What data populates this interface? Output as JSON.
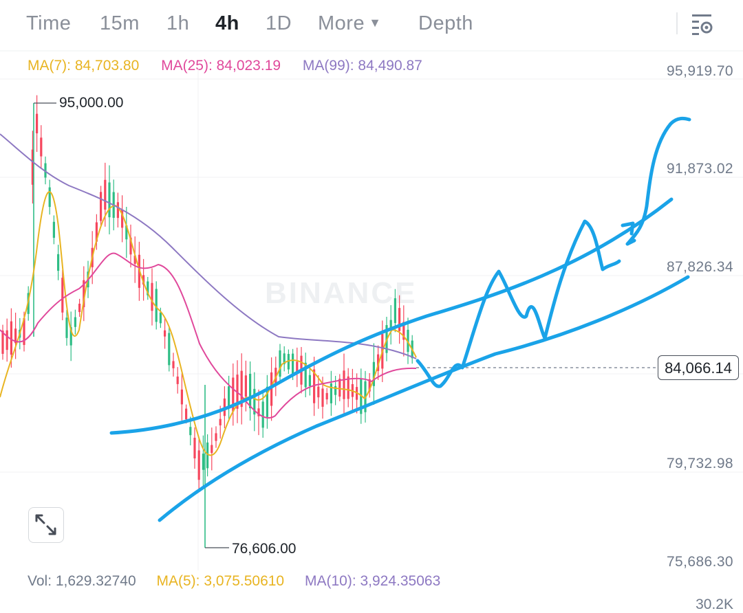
{
  "tabs": {
    "time": "Time",
    "m15": "15m",
    "h1": "1h",
    "h4": "4h",
    "d1": "1D",
    "more": "More",
    "depth": "Depth",
    "active": "4h"
  },
  "ma_legend": {
    "ma7": "MA(7): 84,703.80",
    "ma25": "MA(25): 84,023.19",
    "ma99": "MA(99): 84,490.87"
  },
  "price_axis": {
    "labels": [
      "95,919.70",
      "91,873.02",
      "87,826.34",
      "79,732.98",
      "75,686.30"
    ],
    "current_price": "84,066.14",
    "bottom_partial": "30.2K"
  },
  "extremes": {
    "high": "95,000.00",
    "low": "76,606.00"
  },
  "watermark": "BINANCE",
  "volume_legend": {
    "vol": "Vol: 1,629.32740",
    "ma5": "MA(5): 3,075.50610",
    "ma10": "MA(10): 3,924.35063"
  },
  "colors": {
    "up": "#2ebd85",
    "down": "#f6465d",
    "ma7": "#e8b422",
    "ma25": "#e0489b",
    "ma99": "#8d78c2",
    "drawing": "#1aa3e8",
    "active_tab": "#1e2329"
  },
  "icons": {
    "settings": "chart-settings-icon",
    "expand": "expand-icon",
    "more_caret": "caret-down-icon"
  }
}
